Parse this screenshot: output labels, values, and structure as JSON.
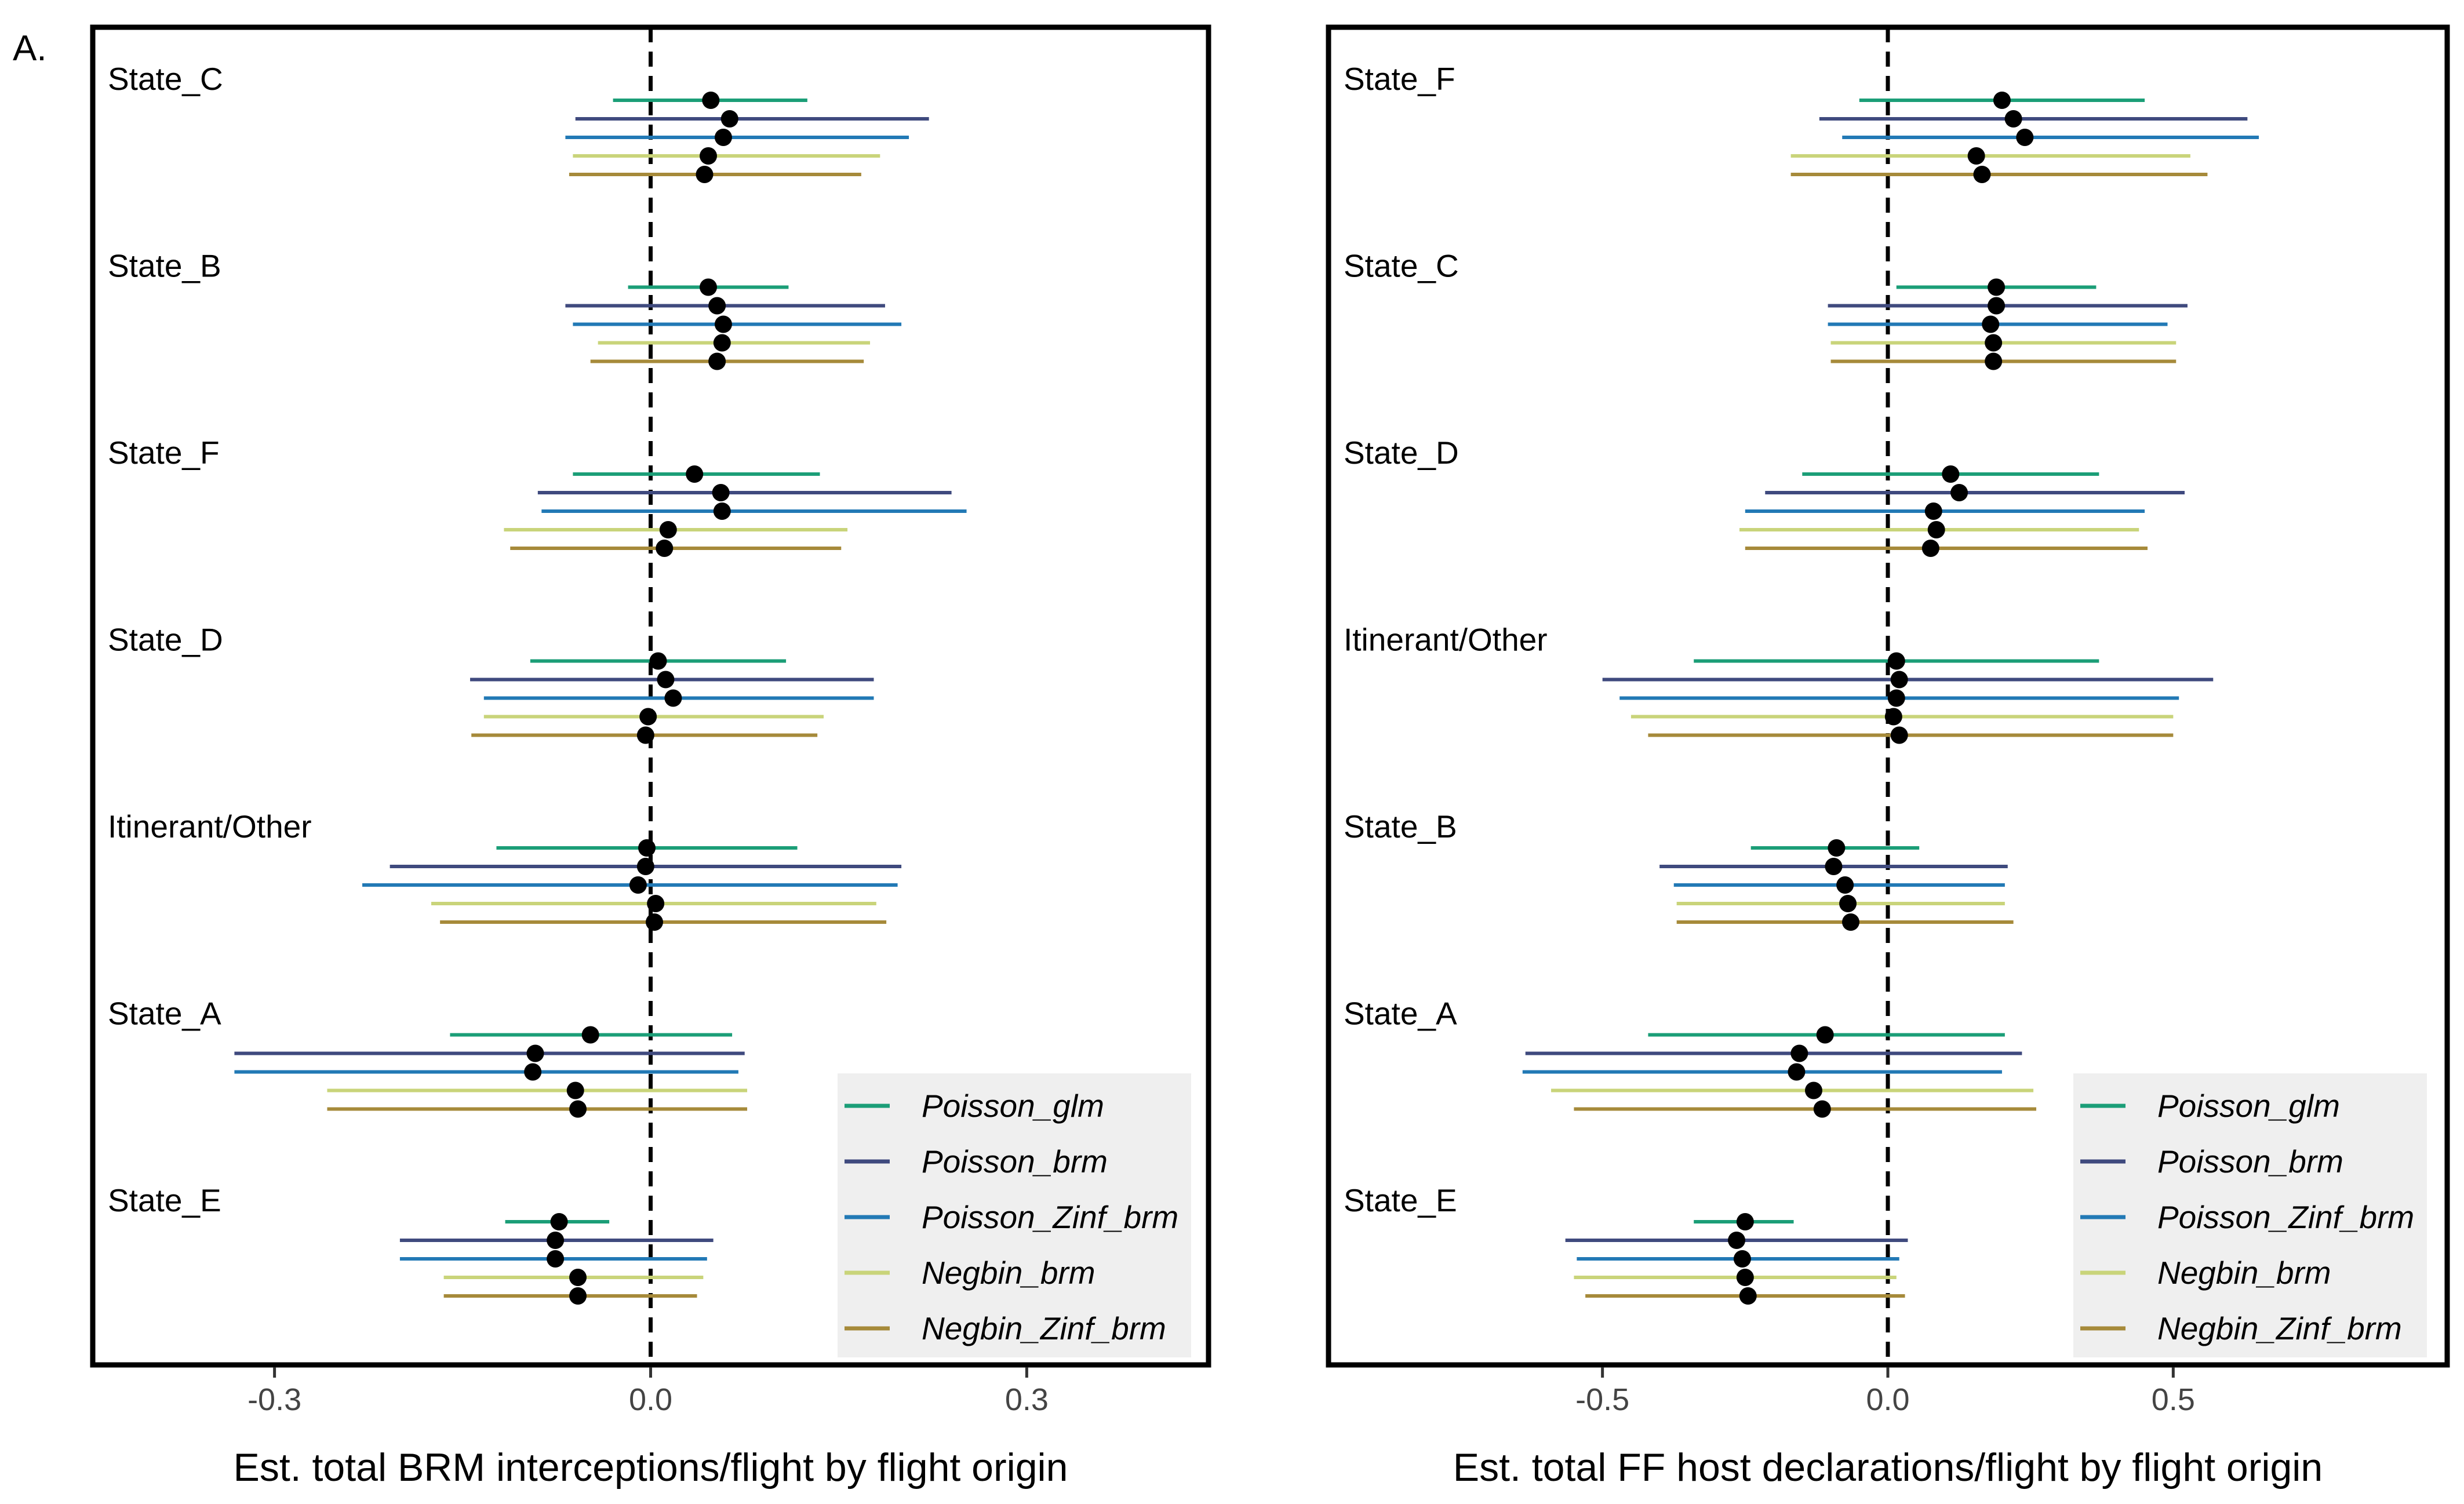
{
  "panel_tag": "A.",
  "colors": {
    "Poisson_glm": "#1b9e77",
    "Poisson_brm": "#3f4a7e",
    "Poisson_Zinf_brm": "#2279b5",
    "Negbin_brm": "#c9d47a",
    "Negbin_Zinf_brm": "#a68a3a",
    "point": "#000000",
    "legend_bg": "#efefef"
  },
  "chart_data": [
    {
      "type": "forest",
      "xlabel": "Est. total BRM interceptions/flight by flight origin",
      "xlim": [
        -0.445,
        0.445
      ],
      "xticks": [
        -0.3,
        0.0,
        0.3
      ],
      "xtick_labels": [
        "-0.3",
        "0.0",
        "0.3"
      ],
      "reference_line": 0,
      "grid": false,
      "legend_position": "bottom-right",
      "series_names": [
        "Poisson_glm",
        "Poisson_brm",
        "Poisson_Zinf_brm",
        "Negbin_brm",
        "Negbin_Zinf_brm"
      ],
      "groups": [
        {
          "label": "State_C",
          "estimates": [
            {
              "model": "Poisson_glm",
              "est": 0.048,
              "lo": -0.03,
              "hi": 0.125
            },
            {
              "model": "Poisson_brm",
              "est": 0.063,
              "lo": -0.06,
              "hi": 0.222
            },
            {
              "model": "Poisson_Zinf_brm",
              "est": 0.058,
              "lo": -0.068,
              "hi": 0.206
            },
            {
              "model": "Negbin_brm",
              "est": 0.046,
              "lo": -0.062,
              "hi": 0.183
            },
            {
              "model": "Negbin_Zinf_brm",
              "est": 0.043,
              "lo": -0.065,
              "hi": 0.168
            }
          ]
        },
        {
          "label": "State_B",
          "estimates": [
            {
              "model": "Poisson_glm",
              "est": 0.046,
              "lo": -0.018,
              "hi": 0.11
            },
            {
              "model": "Poisson_brm",
              "est": 0.053,
              "lo": -0.068,
              "hi": 0.187
            },
            {
              "model": "Poisson_Zinf_brm",
              "est": 0.058,
              "lo": -0.062,
              "hi": 0.2
            },
            {
              "model": "Negbin_brm",
              "est": 0.057,
              "lo": -0.042,
              "hi": 0.175
            },
            {
              "model": "Negbin_Zinf_brm",
              "est": 0.053,
              "lo": -0.048,
              "hi": 0.17
            }
          ]
        },
        {
          "label": "State_F",
          "estimates": [
            {
              "model": "Poisson_glm",
              "est": 0.035,
              "lo": -0.062,
              "hi": 0.135
            },
            {
              "model": "Poisson_brm",
              "est": 0.056,
              "lo": -0.09,
              "hi": 0.24
            },
            {
              "model": "Poisson_Zinf_brm",
              "est": 0.057,
              "lo": -0.087,
              "hi": 0.252
            },
            {
              "model": "Negbin_brm",
              "est": 0.014,
              "lo": -0.117,
              "hi": 0.157
            },
            {
              "model": "Negbin_Zinf_brm",
              "est": 0.011,
              "lo": -0.112,
              "hi": 0.152
            }
          ]
        },
        {
          "label": "State_D",
          "estimates": [
            {
              "model": "Poisson_glm",
              "est": 0.006,
              "lo": -0.096,
              "hi": 0.108
            },
            {
              "model": "Poisson_brm",
              "est": 0.012,
              "lo": -0.144,
              "hi": 0.178
            },
            {
              "model": "Poisson_Zinf_brm",
              "est": 0.018,
              "lo": -0.133,
              "hi": 0.178
            },
            {
              "model": "Negbin_brm",
              "est": -0.002,
              "lo": -0.133,
              "hi": 0.138
            },
            {
              "model": "Negbin_Zinf_brm",
              "est": -0.004,
              "lo": -0.143,
              "hi": 0.133
            }
          ]
        },
        {
          "label": "Itinerant/Other",
          "estimates": [
            {
              "model": "Poisson_glm",
              "est": -0.003,
              "lo": -0.123,
              "hi": 0.117
            },
            {
              "model": "Poisson_brm",
              "est": -0.004,
              "lo": -0.208,
              "hi": 0.2
            },
            {
              "model": "Poisson_Zinf_brm",
              "est": -0.01,
              "lo": -0.23,
              "hi": 0.197
            },
            {
              "model": "Negbin_brm",
              "est": 0.004,
              "lo": -0.175,
              "hi": 0.18
            },
            {
              "model": "Negbin_Zinf_brm",
              "est": 0.003,
              "lo": -0.168,
              "hi": 0.188
            }
          ]
        },
        {
          "label": "State_A",
          "estimates": [
            {
              "model": "Poisson_glm",
              "est": -0.048,
              "lo": -0.16,
              "hi": 0.065
            },
            {
              "model": "Poisson_brm",
              "est": -0.092,
              "lo": -0.332,
              "hi": 0.075
            },
            {
              "model": "Poisson_Zinf_brm",
              "est": -0.094,
              "lo": -0.332,
              "hi": 0.07
            },
            {
              "model": "Negbin_brm",
              "est": -0.06,
              "lo": -0.258,
              "hi": 0.077
            },
            {
              "model": "Negbin_Zinf_brm",
              "est": -0.058,
              "lo": -0.258,
              "hi": 0.077
            }
          ]
        },
        {
          "label": "State_E",
          "estimates": [
            {
              "model": "Poisson_glm",
              "est": -0.073,
              "lo": -0.116,
              "hi": -0.033
            },
            {
              "model": "Poisson_brm",
              "est": -0.076,
              "lo": -0.2,
              "hi": 0.05
            },
            {
              "model": "Poisson_Zinf_brm",
              "est": -0.076,
              "lo": -0.2,
              "hi": 0.045
            },
            {
              "model": "Negbin_brm",
              "est": -0.058,
              "lo": -0.165,
              "hi": 0.042
            },
            {
              "model": "Negbin_Zinf_brm",
              "est": -0.058,
              "lo": -0.165,
              "hi": 0.037
            }
          ]
        }
      ]
    },
    {
      "type": "forest",
      "xlabel": "Est. total FF host declarations/flight by flight origin",
      "xlim": [
        -0.98,
        0.98
      ],
      "xticks": [
        -0.5,
        0.0,
        0.5
      ],
      "xtick_labels": [
        "-0.5",
        "0.0",
        "0.5"
      ],
      "reference_line": 0,
      "grid": false,
      "legend_position": "bottom-right",
      "series_names": [
        "Poisson_glm",
        "Poisson_brm",
        "Poisson_Zinf_brm",
        "Negbin_brm",
        "Negbin_Zinf_brm"
      ],
      "groups": [
        {
          "label": "State_F",
          "estimates": [
            {
              "model": "Poisson_glm",
              "est": 0.2,
              "lo": -0.05,
              "hi": 0.45
            },
            {
              "model": "Poisson_brm",
              "est": 0.22,
              "lo": -0.12,
              "hi": 0.63
            },
            {
              "model": "Poisson_Zinf_brm",
              "est": 0.24,
              "lo": -0.08,
              "hi": 0.65
            },
            {
              "model": "Negbin_brm",
              "est": 0.155,
              "lo": -0.17,
              "hi": 0.53
            },
            {
              "model": "Negbin_Zinf_brm",
              "est": 0.165,
              "lo": -0.17,
              "hi": 0.56
            }
          ]
        },
        {
          "label": "State_C",
          "estimates": [
            {
              "model": "Poisson_glm",
              "est": 0.19,
              "lo": 0.015,
              "hi": 0.365
            },
            {
              "model": "Poisson_brm",
              "est": 0.19,
              "lo": -0.105,
              "hi": 0.525
            },
            {
              "model": "Poisson_Zinf_brm",
              "est": 0.18,
              "lo": -0.105,
              "hi": 0.49
            },
            {
              "model": "Negbin_brm",
              "est": 0.185,
              "lo": -0.1,
              "hi": 0.505
            },
            {
              "model": "Negbin_Zinf_brm",
              "est": 0.185,
              "lo": -0.1,
              "hi": 0.505
            }
          ]
        },
        {
          "label": "State_D",
          "estimates": [
            {
              "model": "Poisson_glm",
              "est": 0.11,
              "lo": -0.15,
              "hi": 0.37
            },
            {
              "model": "Poisson_brm",
              "est": 0.125,
              "lo": -0.215,
              "hi": 0.52
            },
            {
              "model": "Poisson_Zinf_brm",
              "est": 0.08,
              "lo": -0.25,
              "hi": 0.45
            },
            {
              "model": "Negbin_brm",
              "est": 0.085,
              "lo": -0.26,
              "hi": 0.44
            },
            {
              "model": "Negbin_Zinf_brm",
              "est": 0.075,
              "lo": -0.25,
              "hi": 0.455
            }
          ]
        },
        {
          "label": "Itinerant/Other",
          "estimates": [
            {
              "model": "Poisson_glm",
              "est": 0.015,
              "lo": -0.34,
              "hi": 0.37
            },
            {
              "model": "Poisson_brm",
              "est": 0.02,
              "lo": -0.5,
              "hi": 0.57
            },
            {
              "model": "Poisson_Zinf_brm",
              "est": 0.015,
              "lo": -0.47,
              "hi": 0.51
            },
            {
              "model": "Negbin_brm",
              "est": 0.01,
              "lo": -0.45,
              "hi": 0.5
            },
            {
              "model": "Negbin_Zinf_brm",
              "est": 0.02,
              "lo": -0.42,
              "hi": 0.5
            }
          ]
        },
        {
          "label": "State_B",
          "estimates": [
            {
              "model": "Poisson_glm",
              "est": -0.09,
              "lo": -0.24,
              "hi": 0.055
            },
            {
              "model": "Poisson_brm",
              "est": -0.095,
              "lo": -0.4,
              "hi": 0.21
            },
            {
              "model": "Poisson_Zinf_brm",
              "est": -0.075,
              "lo": -0.375,
              "hi": 0.205
            },
            {
              "model": "Negbin_brm",
              "est": -0.07,
              "lo": -0.37,
              "hi": 0.205
            },
            {
              "model": "Negbin_Zinf_brm",
              "est": -0.065,
              "lo": -0.37,
              "hi": 0.22
            }
          ]
        },
        {
          "label": "State_A",
          "estimates": [
            {
              "model": "Poisson_glm",
              "est": -0.11,
              "lo": -0.42,
              "hi": 0.205
            },
            {
              "model": "Poisson_brm",
              "est": -0.155,
              "lo": -0.635,
              "hi": 0.235
            },
            {
              "model": "Poisson_Zinf_brm",
              "est": -0.16,
              "lo": -0.64,
              "hi": 0.2
            },
            {
              "model": "Negbin_brm",
              "est": -0.13,
              "lo": -0.59,
              "hi": 0.255
            },
            {
              "model": "Negbin_Zinf_brm",
              "est": -0.115,
              "lo": -0.55,
              "hi": 0.26
            }
          ]
        },
        {
          "label": "State_E",
          "estimates": [
            {
              "model": "Poisson_glm",
              "est": -0.25,
              "lo": -0.34,
              "hi": -0.165
            },
            {
              "model": "Poisson_brm",
              "est": -0.265,
              "lo": -0.565,
              "hi": 0.035
            },
            {
              "model": "Poisson_Zinf_brm",
              "est": -0.255,
              "lo": -0.545,
              "hi": 0.02
            },
            {
              "model": "Negbin_brm",
              "est": -0.25,
              "lo": -0.55,
              "hi": 0.015
            },
            {
              "model": "Negbin_Zinf_brm",
              "est": -0.245,
              "lo": -0.53,
              "hi": 0.03
            }
          ]
        }
      ]
    }
  ]
}
